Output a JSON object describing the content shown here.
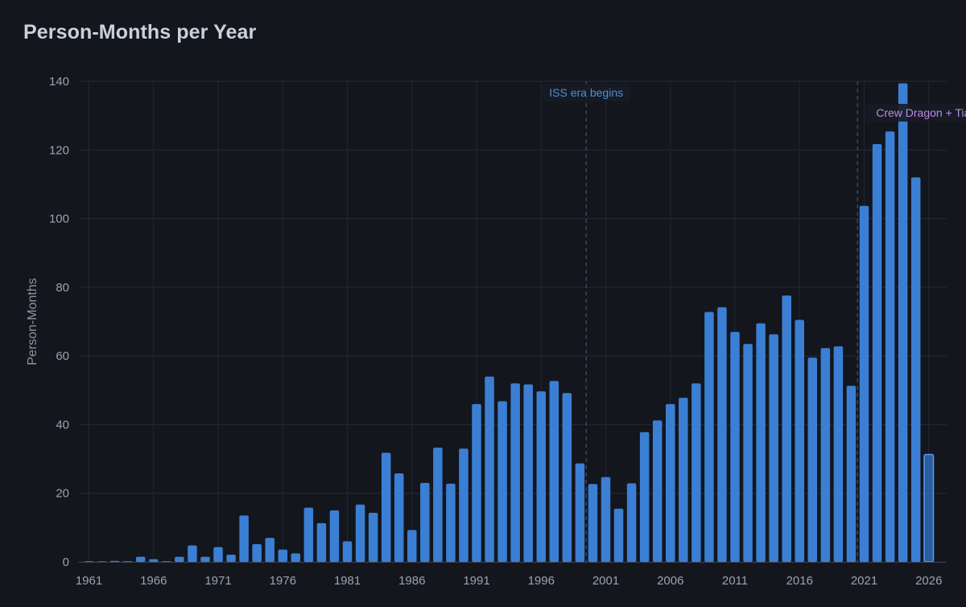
{
  "chart_data": {
    "type": "bar",
    "title": "Person-Months per Year",
    "xlabel": "",
    "ylabel": "Person-Months",
    "ylim": [
      0,
      140
    ],
    "yticks": [
      0,
      20,
      40,
      60,
      80,
      100,
      120,
      140
    ],
    "xticks": [
      "1961",
      "1966",
      "1971",
      "1976",
      "1981",
      "1986",
      "1991",
      "1996",
      "2001",
      "2006",
      "2011",
      "2016",
      "2021",
      "2026"
    ],
    "grid": true,
    "bar_color": "#3b7fd4",
    "partial_bar_color": "#2f6bb8",
    "years": [
      1961,
      1962,
      1963,
      1964,
      1965,
      1966,
      1967,
      1968,
      1969,
      1970,
      1971,
      1972,
      1973,
      1974,
      1975,
      1976,
      1977,
      1978,
      1979,
      1980,
      1981,
      1982,
      1983,
      1984,
      1985,
      1986,
      1987,
      1988,
      1989,
      1990,
      1991,
      1992,
      1993,
      1994,
      1995,
      1996,
      1997,
      1998,
      1999,
      2000,
      2001,
      2002,
      2003,
      2004,
      2005,
      2006,
      2007,
      2008,
      2009,
      2010,
      2011,
      2012,
      2013,
      2014,
      2015,
      2016,
      2017,
      2018,
      2019,
      2020,
      2021,
      2022,
      2023,
      2024,
      2025,
      2026
    ],
    "values": [
      0.2,
      0.1,
      0.3,
      0.2,
      1.5,
      0.8,
      0.2,
      1.5,
      4.8,
      1.5,
      4.3,
      2.1,
      13.5,
      5.2,
      7.0,
      3.6,
      2.5,
      15.8,
      11.3,
      15.0,
      6.0,
      16.7,
      14.3,
      31.8,
      25.8,
      9.3,
      23.0,
      33.3,
      22.8,
      33.0,
      46.0,
      54.0,
      46.8,
      52.0,
      51.7,
      49.7,
      52.7,
      49.2,
      28.7,
      22.7,
      24.7,
      15.5,
      22.9,
      37.8,
      41.2,
      46.0,
      47.8,
      52.0,
      72.8,
      74.2,
      67.0,
      63.5,
      69.5,
      66.3,
      77.6,
      70.5,
      59.5,
      62.3,
      62.8,
      51.3,
      103.7,
      121.7,
      125.4,
      139.4,
      112.0,
      31.3
    ],
    "partial_years": [
      2026
    ],
    "annotations": [
      {
        "year": 2000,
        "label": "ISS era begins",
        "color": "#4f8de0"
      },
      {
        "year": 2021,
        "label": "Crew Dragon + Tiangong",
        "color": "#b98ae6"
      }
    ]
  }
}
